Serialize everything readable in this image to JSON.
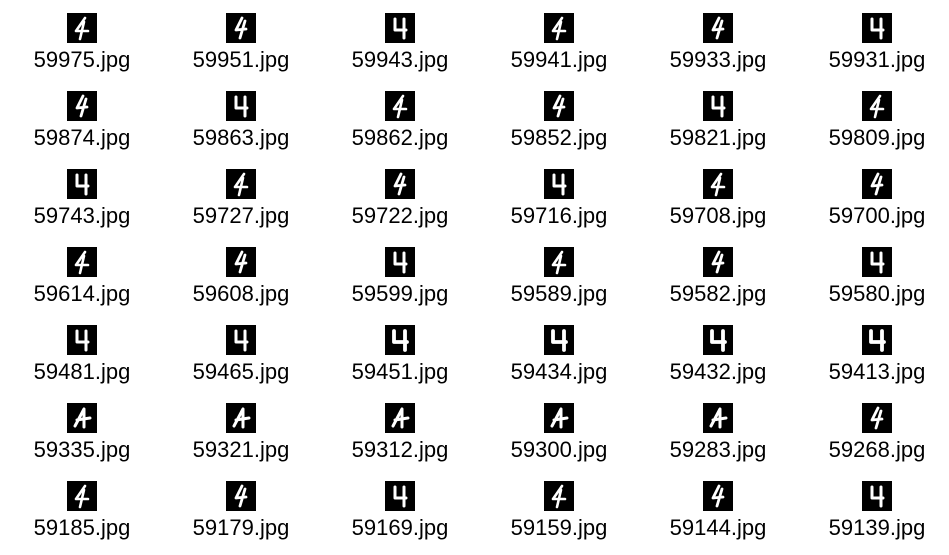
{
  "view": "thumbnails",
  "thumbnail_style": {
    "background": "#000000",
    "digit_color": "#ffffff"
  },
  "files": [
    {
      "name": "59975.jpg",
      "icon": "handwritten-digit-4-thumbnail"
    },
    {
      "name": "59951.jpg",
      "icon": "handwritten-digit-4-thumbnail"
    },
    {
      "name": "59943.jpg",
      "icon": "handwritten-digit-4-thumbnail"
    },
    {
      "name": "59941.jpg",
      "icon": "handwritten-digit-4-thumbnail"
    },
    {
      "name": "59933.jpg",
      "icon": "handwritten-digit-4-thumbnail"
    },
    {
      "name": "59931.jpg",
      "icon": "handwritten-digit-4-thumbnail"
    },
    {
      "name": "59874.jpg",
      "icon": "handwritten-digit-4-thumbnail"
    },
    {
      "name": "59863.jpg",
      "icon": "handwritten-digit-4-thumbnail"
    },
    {
      "name": "59862.jpg",
      "icon": "handwritten-digit-4-thumbnail"
    },
    {
      "name": "59852.jpg",
      "icon": "handwritten-digit-4-thumbnail"
    },
    {
      "name": "59821.jpg",
      "icon": "handwritten-digit-4-thumbnail"
    },
    {
      "name": "59809.jpg",
      "icon": "handwritten-digit-4-thumbnail"
    },
    {
      "name": "59743.jpg",
      "icon": "handwritten-digit-4-thumbnail"
    },
    {
      "name": "59727.jpg",
      "icon": "handwritten-digit-4-thumbnail"
    },
    {
      "name": "59722.jpg",
      "icon": "handwritten-digit-4-thumbnail"
    },
    {
      "name": "59716.jpg",
      "icon": "handwritten-digit-4-thumbnail"
    },
    {
      "name": "59708.jpg",
      "icon": "handwritten-digit-4-thumbnail"
    },
    {
      "name": "59700.jpg",
      "icon": "handwritten-digit-4-thumbnail"
    },
    {
      "name": "59614.jpg",
      "icon": "handwritten-digit-4-thumbnail"
    },
    {
      "name": "59608.jpg",
      "icon": "handwritten-digit-4-thumbnail"
    },
    {
      "name": "59599.jpg",
      "icon": "handwritten-digit-4-thumbnail"
    },
    {
      "name": "59589.jpg",
      "icon": "handwritten-digit-4-thumbnail"
    },
    {
      "name": "59582.jpg",
      "icon": "handwritten-digit-4-thumbnail"
    },
    {
      "name": "59580.jpg",
      "icon": "handwritten-digit-4-thumbnail"
    },
    {
      "name": "59481.jpg",
      "icon": "handwritten-digit-4-thumbnail"
    },
    {
      "name": "59465.jpg",
      "icon": "handwritten-digit-4-thumbnail"
    },
    {
      "name": "59451.jpg",
      "icon": "handwritten-digit-4-thumbnail"
    },
    {
      "name": "59434.jpg",
      "icon": "handwritten-digit-4-thumbnail"
    },
    {
      "name": "59432.jpg",
      "icon": "handwritten-digit-4-thumbnail"
    },
    {
      "name": "59413.jpg",
      "icon": "handwritten-digit-4-thumbnail"
    },
    {
      "name": "59335.jpg",
      "icon": "handwritten-digit-4-thumbnail"
    },
    {
      "name": "59321.jpg",
      "icon": "handwritten-digit-4-thumbnail"
    },
    {
      "name": "59312.jpg",
      "icon": "handwritten-digit-4-thumbnail"
    },
    {
      "name": "59300.jpg",
      "icon": "handwritten-digit-4-thumbnail"
    },
    {
      "name": "59283.jpg",
      "icon": "handwritten-digit-4-thumbnail"
    },
    {
      "name": "59268.jpg",
      "icon": "handwritten-digit-4-thumbnail"
    },
    {
      "name": "59185.jpg",
      "icon": "handwritten-digit-4-thumbnail"
    },
    {
      "name": "59179.jpg",
      "icon": "handwritten-digit-4-thumbnail"
    },
    {
      "name": "59169.jpg",
      "icon": "handwritten-digit-4-thumbnail"
    },
    {
      "name": "59159.jpg",
      "icon": "handwritten-digit-4-thumbnail"
    },
    {
      "name": "59144.jpg",
      "icon": "handwritten-digit-4-thumbnail"
    },
    {
      "name": "59139.jpg",
      "icon": "handwritten-digit-4-thumbnail"
    }
  ]
}
